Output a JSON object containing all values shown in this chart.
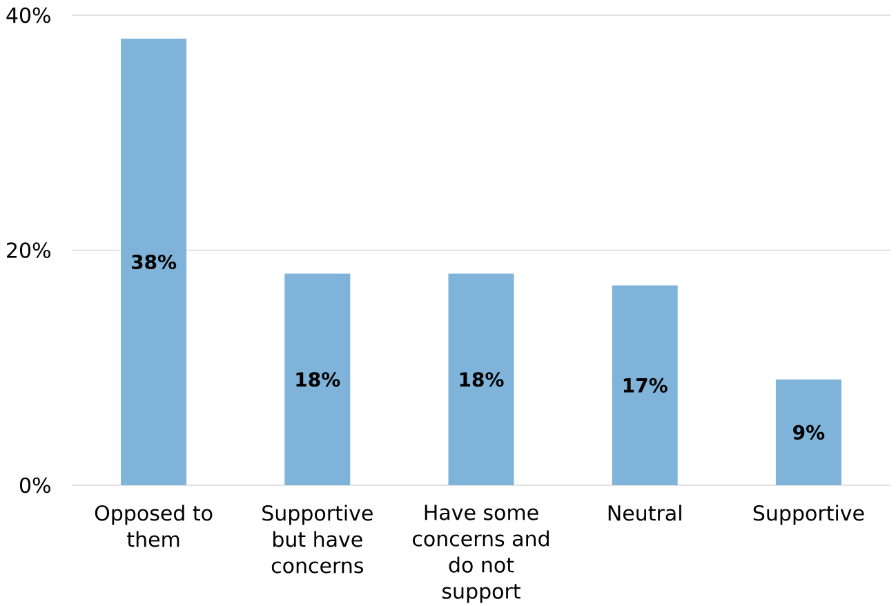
{
  "chart_data": {
    "type": "bar",
    "categories": [
      "Opposed to them",
      "Supportive but have concerns",
      "Have some concerns and do not support",
      "Neutral",
      "Supportive"
    ],
    "values": [
      38,
      18,
      18,
      17,
      9
    ],
    "color": "#7fb3da",
    "value_labels": [
      "38%",
      "18%",
      "18%",
      "17%",
      "9%"
    ],
    "ylim": [
      0,
      40
    ],
    "yticks": [
      {
        "value": 0,
        "label": "0%"
      },
      {
        "value": 20,
        "label": "20%"
      },
      {
        "value": 40,
        "label": "40%"
      }
    ],
    "grid": "y"
  }
}
